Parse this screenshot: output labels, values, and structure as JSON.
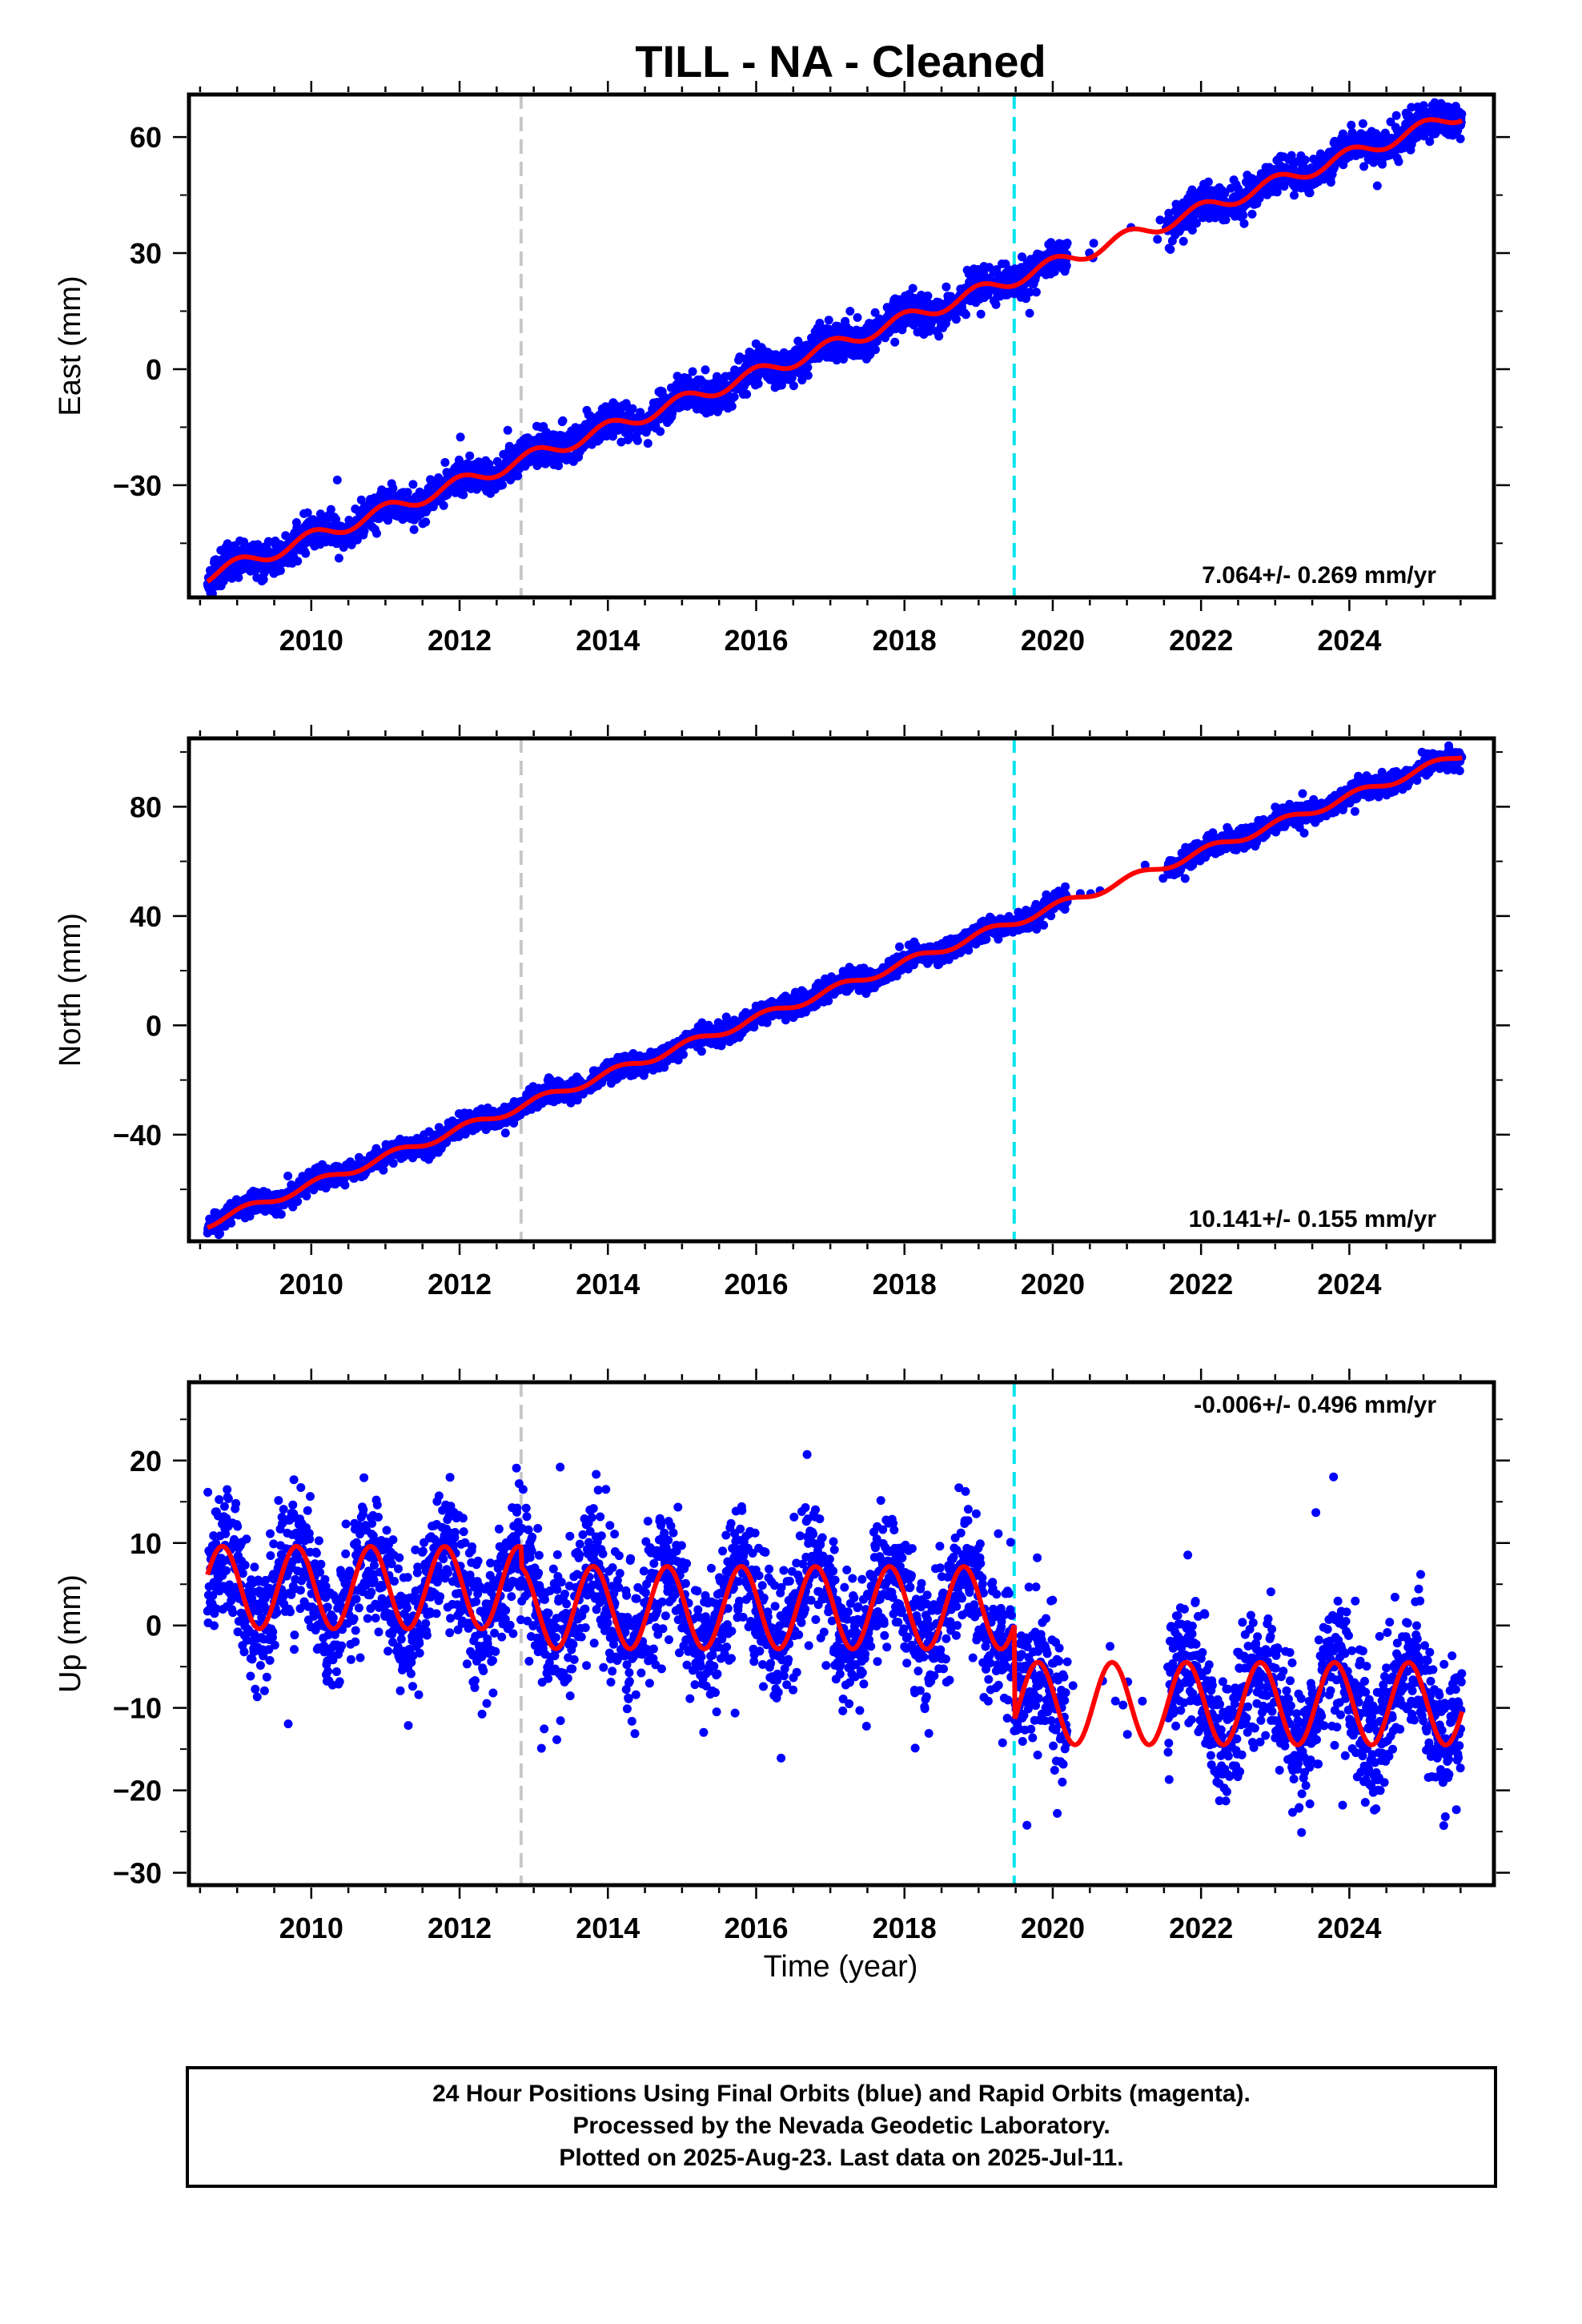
{
  "figure": {
    "title": "TILL  - NA - Cleaned",
    "x_axis_label": "Time (year)",
    "footer_lines": [
      "24 Hour Positions Using Final Orbits (blue) and Rapid Orbits (magenta).",
      "Processed by the Nevada Geodetic Laboratory.",
      "Plotted on 2025-Aug-23. Last data on 2025-Jul-11."
    ]
  },
  "colors": {
    "data_points": "#0000ff",
    "model_fit": "#ff0000",
    "dashed_line_gray": "#c8c8c8",
    "dashed_line_cyan": "#00e5ee",
    "frame": "#000000"
  },
  "chart_data": [
    {
      "type": "scatter",
      "name": "east",
      "ylabel": "East (mm)",
      "xlabel": "",
      "rate_label": "7.064+/- 0.269 mm/yr",
      "xlim": [
        2008.35,
        2025.95
      ],
      "ylim": [
        -59,
        71
      ],
      "xticks": [
        2010,
        2012,
        2014,
        2016,
        2018,
        2020,
        2022,
        2024
      ],
      "yticks": [
        -30,
        0,
        30,
        60
      ],
      "vertical_dashed_lines": [
        2012.83,
        2019.48
      ],
      "model": {
        "rate": 7.064,
        "intercept": -53.5,
        "t0": 2008.6,
        "amp": 1.8,
        "phase_deg": 90
      },
      "data_gap": [
        2020.2,
        2021.55
      ],
      "scatter": 2.2,
      "seed": 11
    },
    {
      "type": "scatter",
      "name": "north",
      "ylabel": "North (mm)",
      "xlabel": "",
      "rate_label": "10.141+/- 0.155 mm/yr",
      "xlim": [
        2008.35,
        2025.95
      ],
      "ylim": [
        -79,
        105
      ],
      "xticks": [
        2010,
        2012,
        2014,
        2016,
        2018,
        2020,
        2022,
        2024
      ],
      "yticks": [
        -40,
        0,
        40,
        80
      ],
      "vertical_dashed_lines": [
        2012.83,
        2019.48
      ],
      "model": {
        "rate": 10.141,
        "intercept": -72.5,
        "t0": 2008.6,
        "amp": 1.5,
        "phase_deg": 45
      },
      "data_gap": [
        2020.2,
        2021.55
      ],
      "scatter": 1.8,
      "seed": 23
    },
    {
      "type": "scatter",
      "name": "up",
      "ylabel": "Up (mm)",
      "xlabel": "Time (year)",
      "rate_label": "-0.006+/- 0.496 mm/yr",
      "xlim": [
        2008.35,
        2025.95
      ],
      "ylim": [
        -31.5,
        29.5
      ],
      "xticks": [
        2010,
        2012,
        2014,
        2016,
        2018,
        2020,
        2022,
        2024
      ],
      "yticks": [
        -30,
        -20,
        -10,
        0,
        10,
        20
      ],
      "vertical_dashed_lines": [
        2012.83,
        2019.48
      ],
      "model": {
        "rate": -0.006,
        "annual_amp": 5.0,
        "peak_phase": 0.8,
        "segments": [
          {
            "start": 2008.6,
            "end": 2012.83,
            "offset": 4.6
          },
          {
            "start": 2012.83,
            "end": 2019.48,
            "offset": 2.2
          },
          {
            "start": 2019.48,
            "end": 2025.55,
            "offset": -9.4
          }
        ]
      },
      "data_gap": [
        2020.2,
        2021.55
      ],
      "scatter": 4.0,
      "seed": 37
    }
  ]
}
